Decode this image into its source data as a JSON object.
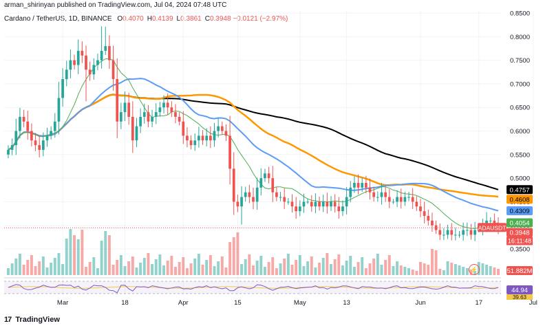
{
  "header": {
    "published": "arman_shirinyan published on TradingView.com, Jul 04, 2024 07:48 UTC",
    "symbol_line": "Cardano / TetherUS, 1D, BINANCE",
    "ohlc": [
      {
        "k": "O",
        "v": "0.4070"
      },
      {
        "k": "H",
        "v": "0.4139"
      },
      {
        "k": "L",
        "v": "0.3861"
      },
      {
        "k": "C",
        "v": "0.3948"
      }
    ],
    "change": "−0.0121 (−2.97%)"
  },
  "branding": {
    "logo": "17",
    "name": "TradingView"
  },
  "colors": {
    "up": "#26a69a",
    "down": "#ef5350",
    "ma20": "#4caf50",
    "ma50": "#5b9cf6",
    "ma100": "#ff9800",
    "ma200": "#000000",
    "rsi": "#7e57c2"
  },
  "chart_data": {
    "type": "candlestick",
    "symbol": "ADAUSDT",
    "ylim": [
      0.35,
      0.85
    ],
    "y_ticks": [
      "0.8500",
      "0.8000",
      "0.7500",
      "0.7000",
      "0.6500",
      "0.6000",
      "0.5500",
      "0.5000",
      "0.4500",
      "0.4000",
      "0.3500"
    ],
    "x_labels": [
      {
        "day": 14,
        "label": "Mar"
      },
      {
        "day": 30,
        "label": "18"
      },
      {
        "day": 45,
        "label": "Apr"
      },
      {
        "day": 59,
        "label": "15"
      },
      {
        "day": 75,
        "label": "May"
      },
      {
        "day": 87,
        "label": "13"
      },
      {
        "day": 106,
        "label": "Jun"
      },
      {
        "day": 121,
        "label": "17"
      },
      {
        "day": 135,
        "label": "Jul"
      }
    ],
    "closes": [
      0.56,
      0.57,
      0.6,
      0.63,
      0.62,
      0.6,
      0.58,
      0.57,
      0.56,
      0.58,
      0.59,
      0.6,
      0.62,
      0.67,
      0.71,
      0.73,
      0.75,
      0.74,
      0.77,
      0.76,
      0.73,
      0.72,
      0.74,
      0.75,
      0.77,
      0.78,
      0.75,
      0.71,
      0.62,
      0.64,
      0.66,
      0.63,
      0.58,
      0.61,
      0.63,
      0.64,
      0.62,
      0.63,
      0.64,
      0.65,
      0.66,
      0.65,
      0.64,
      0.63,
      0.62,
      0.59,
      0.58,
      0.57,
      0.58,
      0.59,
      0.58,
      0.59,
      0.58,
      0.6,
      0.61,
      0.6,
      0.59,
      0.52,
      0.45,
      0.44,
      0.46,
      0.47,
      0.46,
      0.45,
      0.48,
      0.5,
      0.51,
      0.5,
      0.47,
      0.46,
      0.46,
      0.45,
      0.45,
      0.44,
      0.43,
      0.44,
      0.45,
      0.45,
      0.44,
      0.45,
      0.44,
      0.45,
      0.44,
      0.45,
      0.44,
      0.43,
      0.44,
      0.46,
      0.48,
      0.49,
      0.48,
      0.49,
      0.48,
      0.47,
      0.46,
      0.46,
      0.47,
      0.46,
      0.45,
      0.45,
      0.46,
      0.45,
      0.46,
      0.46,
      0.45,
      0.44,
      0.43,
      0.42,
      0.41,
      0.4,
      0.39,
      0.38,
      0.38,
      0.39,
      0.38,
      0.38,
      0.38,
      0.39,
      0.39,
      0.38,
      0.39,
      0.39,
      0.4,
      0.41,
      0.41,
      0.4,
      0.3948
    ],
    "moving_averages": [
      {
        "name": "MA200",
        "last": 0.4757
      },
      {
        "name": "MA100",
        "last": 0.4608
      },
      {
        "name": "MA50",
        "last": 0.4309
      },
      {
        "name": "MA20",
        "last": 0.4054
      }
    ],
    "price_labels": [
      {
        "value": "0.4757",
        "bg": "#000000",
        "fg": "#ffffff"
      },
      {
        "value": "0.4608",
        "bg": "#ff9800",
        "fg": "#000000"
      },
      {
        "value": "0.4309",
        "bg": "#5b9cf6",
        "fg": "#000000"
      },
      {
        "value": "0.4054",
        "bg": "#4caf50",
        "fg": "#ffffff"
      },
      {
        "value": "0.3948",
        "bg": "#ef5350",
        "fg": "#ffffff"
      }
    ],
    "last_price": {
      "value": "0.3948",
      "countdown": "16:11:48"
    },
    "volume_label": "51.882M",
    "rsi": {
      "value": "44.94",
      "ma_value": "39.63"
    }
  }
}
